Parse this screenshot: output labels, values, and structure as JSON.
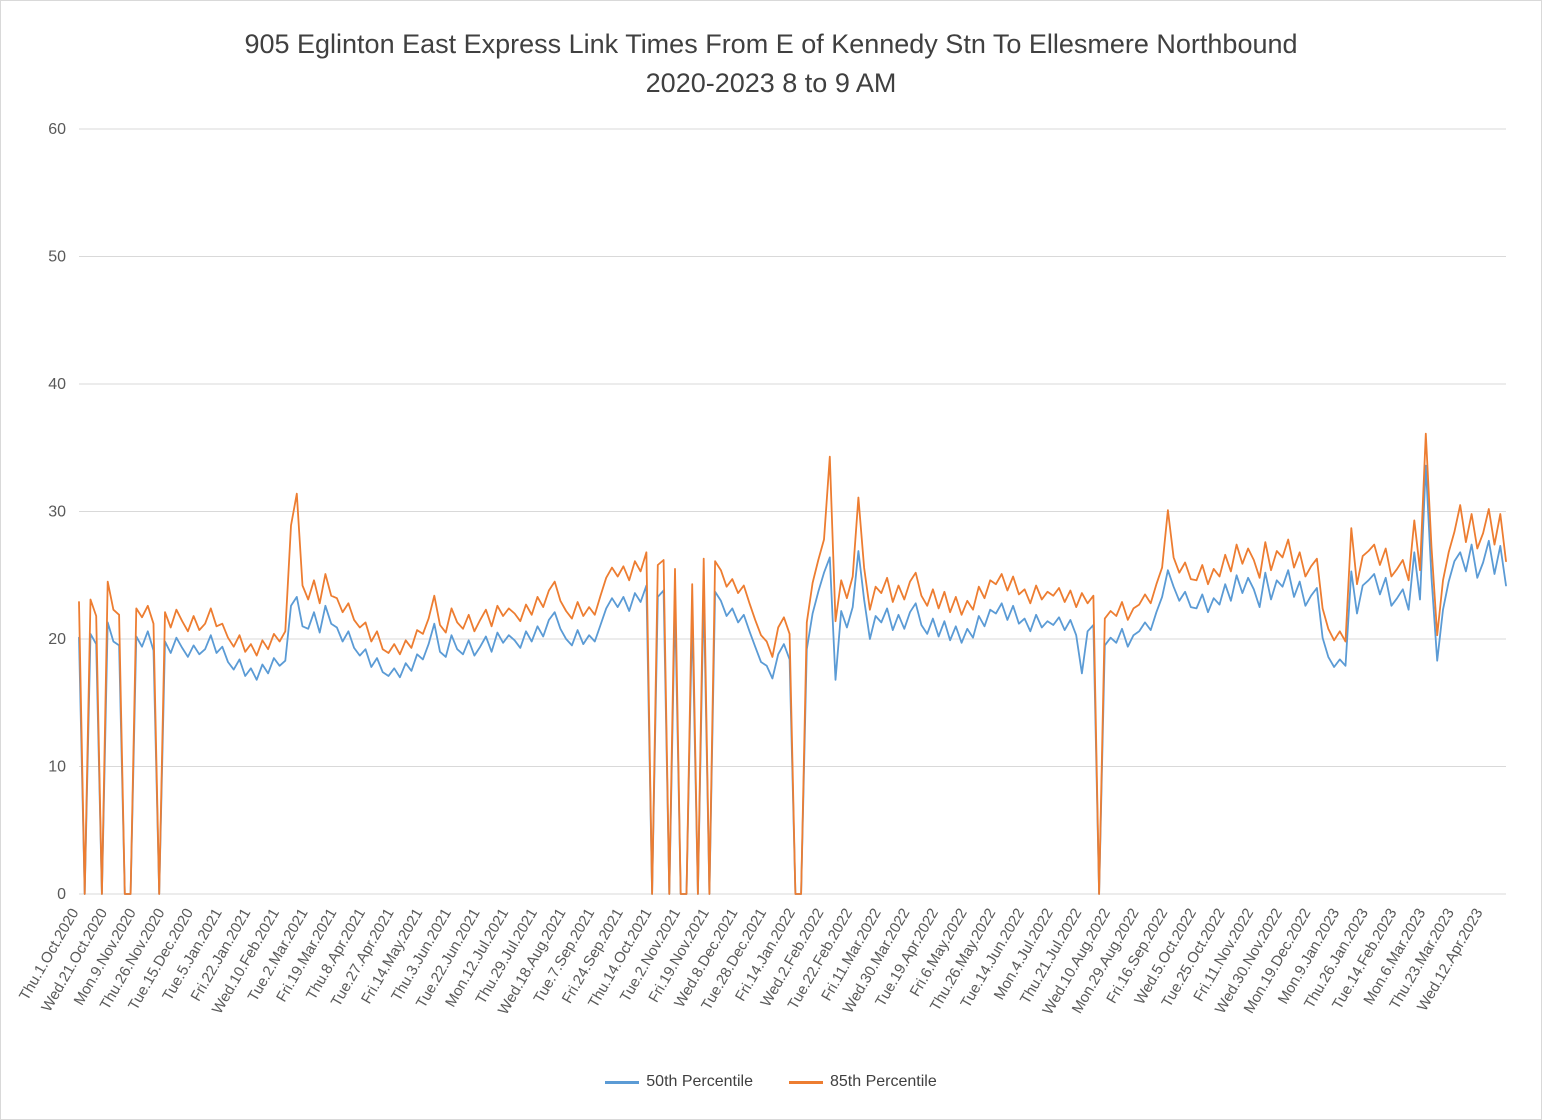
{
  "chart_data": {
    "type": "line",
    "title": "905 Eglinton East Express Link Times From E of Kennedy Stn To Ellesmere Northbound",
    "subtitle": "2020-2023 8 to 9 AM",
    "ylim": [
      0,
      60
    ],
    "y_ticks": [
      0,
      10,
      20,
      30,
      40,
      50,
      60
    ],
    "grid": true,
    "legend_position": "bottom",
    "points_per_label": 5,
    "x_tick_labels": [
      "Thu.1.Oct.2020",
      "Wed.21.Oct.2020",
      "Mon.9.Nov.2020",
      "Thu.26.Nov.2020",
      "Tue.15.Dec.2020",
      "Tue.5.Jan.2021",
      "Fri.22.Jan.2021",
      "Wed.10.Feb.2021",
      "Tue.2.Mar.2021",
      "Fri.19.Mar.2021",
      "Thu.8.Apr.2021",
      "Tue.27.Apr.2021",
      "Fri.14.May.2021",
      "Thu.3.Jun.2021",
      "Tue.22.Jun.2021",
      "Mon.12.Jul.2021",
      "Thu.29.Jul.2021",
      "Wed.18.Aug.2021",
      "Tue.7.Sep.2021",
      "Fri.24.Sep.2021",
      "Thu.14.Oct.2021",
      "Tue.2.Nov.2021",
      "Fri.19.Nov.2021",
      "Wed.8.Dec.2021",
      "Tue.28.Dec.2021",
      "Fri.14.Jan.2022",
      "Wed.2.Feb.2022",
      "Tue.22.Feb.2022",
      "Fri.11.Mar.2022",
      "Wed.30.Mar.2022",
      "Tue.19.Apr.2022",
      "Fri.6.May.2022",
      "Thu.26.May.2022",
      "Tue.14.Jun.2022",
      "Mon.4.Jul.2022",
      "Thu.21.Jul.2022",
      "Wed.10.Aug.2022",
      "Mon.29.Aug.2022",
      "Fri.16.Sep.2022",
      "Wed.5.Oct.2022",
      "Tue.25.Oct.2022",
      "Fri.11.Nov.2022",
      "Wed.30.Nov.2022",
      "Mon.19.Dec.2022",
      "Mon.9.Jan.2023",
      "Thu.26.Jan.2023",
      "Tue.14.Feb.2023",
      "Mon.6.Mar.2023",
      "Thu.23.Mar.2023",
      "Wed.12.Apr.2023"
    ],
    "series": [
      {
        "name": "50th Percentile",
        "color": "#5B9BD5",
        "values": [
          20.1,
          0,
          20.4,
          19.6,
          0,
          21.3,
          19.8,
          19.5,
          0,
          0,
          20.2,
          19.4,
          20.6,
          19.1,
          0,
          19.8,
          18.9,
          20.1,
          19.3,
          18.6,
          19.5,
          18.8,
          19.2,
          20.3,
          18.9,
          19.4,
          18.2,
          17.6,
          18.4,
          17.1,
          17.7,
          16.8,
          18.0,
          17.3,
          18.5,
          17.9,
          18.3,
          22.6,
          23.3,
          21.0,
          20.8,
          22.1,
          20.5,
          22.6,
          21.2,
          20.9,
          19.8,
          20.6,
          19.3,
          18.7,
          19.2,
          17.8,
          18.5,
          17.4,
          17.1,
          17.7,
          17.0,
          18.1,
          17.5,
          18.8,
          18.4,
          19.6,
          21.2,
          19.0,
          18.6,
          20.3,
          19.2,
          18.8,
          19.9,
          18.7,
          19.4,
          20.2,
          19.0,
          20.5,
          19.7,
          20.3,
          19.9,
          19.3,
          20.6,
          19.8,
          21.0,
          20.2,
          21.5,
          22.1,
          20.8,
          20.0,
          19.5,
          20.7,
          19.6,
          20.3,
          19.8,
          21.1,
          22.4,
          23.2,
          22.5,
          23.3,
          22.2,
          23.6,
          22.9,
          24.2,
          0,
          23.3,
          23.8,
          0,
          23.1,
          0,
          0,
          22.0,
          0,
          23.9,
          0,
          23.7,
          23.0,
          21.8,
          22.4,
          21.3,
          21.9,
          20.6,
          19.4,
          18.2,
          17.9,
          16.9,
          18.8,
          19.6,
          18.4,
          0,
          0,
          19.2,
          22.0,
          23.7,
          25.2,
          26.4,
          16.8,
          22.2,
          20.9,
          22.5,
          26.9,
          23.1,
          20.0,
          21.8,
          21.3,
          22.4,
          20.7,
          21.9,
          20.8,
          22.1,
          22.8,
          21.1,
          20.4,
          21.6,
          20.2,
          21.4,
          19.9,
          21.0,
          19.7,
          20.8,
          20.1,
          21.8,
          21.0,
          22.3,
          22.0,
          22.8,
          21.5,
          22.6,
          21.2,
          21.6,
          20.6,
          21.9,
          20.9,
          21.4,
          21.1,
          21.7,
          20.7,
          21.5,
          20.3,
          17.3,
          20.6,
          21.1,
          0,
          19.5,
          20.1,
          19.7,
          20.8,
          19.4,
          20.3,
          20.6,
          21.3,
          20.7,
          22.1,
          23.3,
          25.4,
          24.1,
          23.0,
          23.7,
          22.5,
          22.4,
          23.5,
          22.1,
          23.2,
          22.7,
          24.3,
          23.0,
          25.0,
          23.6,
          24.8,
          23.9,
          22.5,
          25.2,
          23.1,
          24.6,
          24.1,
          25.4,
          23.3,
          24.5,
          22.6,
          23.4,
          24.0,
          20.1,
          18.6,
          17.8,
          18.4,
          17.9,
          25.3,
          22.0,
          24.2,
          24.6,
          25.1,
          23.5,
          24.8,
          22.6,
          23.2,
          23.9,
          22.3,
          26.8,
          23.1,
          33.6,
          24.8,
          18.3,
          22.3,
          24.5,
          26.1,
          26.8,
          25.3,
          27.4,
          24.8,
          26.0,
          27.7,
          25.1,
          27.3,
          24.2
        ]
      },
      {
        "name": "85th Percentile",
        "color": "#ED7D31",
        "values": [
          22.9,
          0,
          23.1,
          21.8,
          0,
          24.5,
          22.3,
          21.9,
          0,
          0,
          22.4,
          21.7,
          22.6,
          21.2,
          0,
          22.1,
          20.9,
          22.3,
          21.4,
          20.6,
          21.8,
          20.7,
          21.2,
          22.4,
          21.0,
          21.2,
          20.1,
          19.4,
          20.3,
          19.0,
          19.6,
          18.7,
          19.9,
          19.2,
          20.4,
          19.8,
          20.6,
          28.9,
          31.4,
          24.2,
          23.1,
          24.6,
          22.8,
          25.1,
          23.4,
          23.2,
          22.1,
          22.8,
          21.5,
          20.9,
          21.3,
          19.8,
          20.6,
          19.2,
          18.9,
          19.6,
          18.8,
          19.9,
          19.3,
          20.7,
          20.4,
          21.6,
          23.4,
          21.1,
          20.5,
          22.4,
          21.3,
          20.8,
          21.9,
          20.6,
          21.5,
          22.3,
          21.0,
          22.6,
          21.8,
          22.4,
          22.0,
          21.4,
          22.7,
          21.9,
          23.3,
          22.5,
          23.8,
          24.5,
          23.0,
          22.2,
          21.6,
          22.9,
          21.8,
          22.5,
          21.9,
          23.4,
          24.8,
          25.6,
          24.9,
          25.7,
          24.6,
          26.1,
          25.3,
          26.8,
          0,
          25.8,
          26.2,
          0,
          25.5,
          0,
          0,
          24.3,
          0,
          26.3,
          0,
          26.1,
          25.4,
          24.1,
          24.7,
          23.6,
          24.2,
          22.8,
          21.5,
          20.3,
          19.8,
          18.6,
          20.9,
          21.7,
          20.4,
          0,
          0,
          21.3,
          24.4,
          26.2,
          27.8,
          34.3,
          21.4,
          24.6,
          23.2,
          24.9,
          31.1,
          25.6,
          22.3,
          24.1,
          23.6,
          24.8,
          22.9,
          24.2,
          23.1,
          24.5,
          25.2,
          23.4,
          22.6,
          23.9,
          22.4,
          23.7,
          22.1,
          23.3,
          21.9,
          23.0,
          22.3,
          24.1,
          23.2,
          24.6,
          24.3,
          25.1,
          23.8,
          24.9,
          23.5,
          23.9,
          22.8,
          24.2,
          23.1,
          23.7,
          23.4,
          24.0,
          22.9,
          23.8,
          22.5,
          23.6,
          22.8,
          23.4,
          0,
          21.6,
          22.2,
          21.8,
          22.9,
          21.5,
          22.4,
          22.7,
          23.5,
          22.8,
          24.3,
          25.6,
          30.1,
          26.4,
          25.2,
          26.0,
          24.7,
          24.6,
          25.8,
          24.3,
          25.5,
          24.9,
          26.6,
          25.3,
          27.4,
          25.9,
          27.1,
          26.2,
          24.8,
          27.6,
          25.4,
          26.9,
          26.4,
          27.8,
          25.6,
          26.8,
          24.9,
          25.7,
          26.3,
          22.4,
          20.8,
          19.9,
          20.6,
          19.8,
          28.7,
          24.3,
          26.5,
          26.9,
          27.4,
          25.8,
          27.1,
          24.9,
          25.5,
          26.2,
          24.6,
          29.3,
          25.4,
          36.1,
          27.2,
          20.3,
          24.6,
          26.8,
          28.4,
          30.5,
          27.6,
          29.8,
          27.1,
          28.3,
          30.2,
          27.4,
          29.8,
          26.1
        ]
      }
    ],
    "style": {
      "grid_color": "#d9d9d9",
      "axis_text_color": "#595959",
      "title_color": "#404040"
    }
  }
}
